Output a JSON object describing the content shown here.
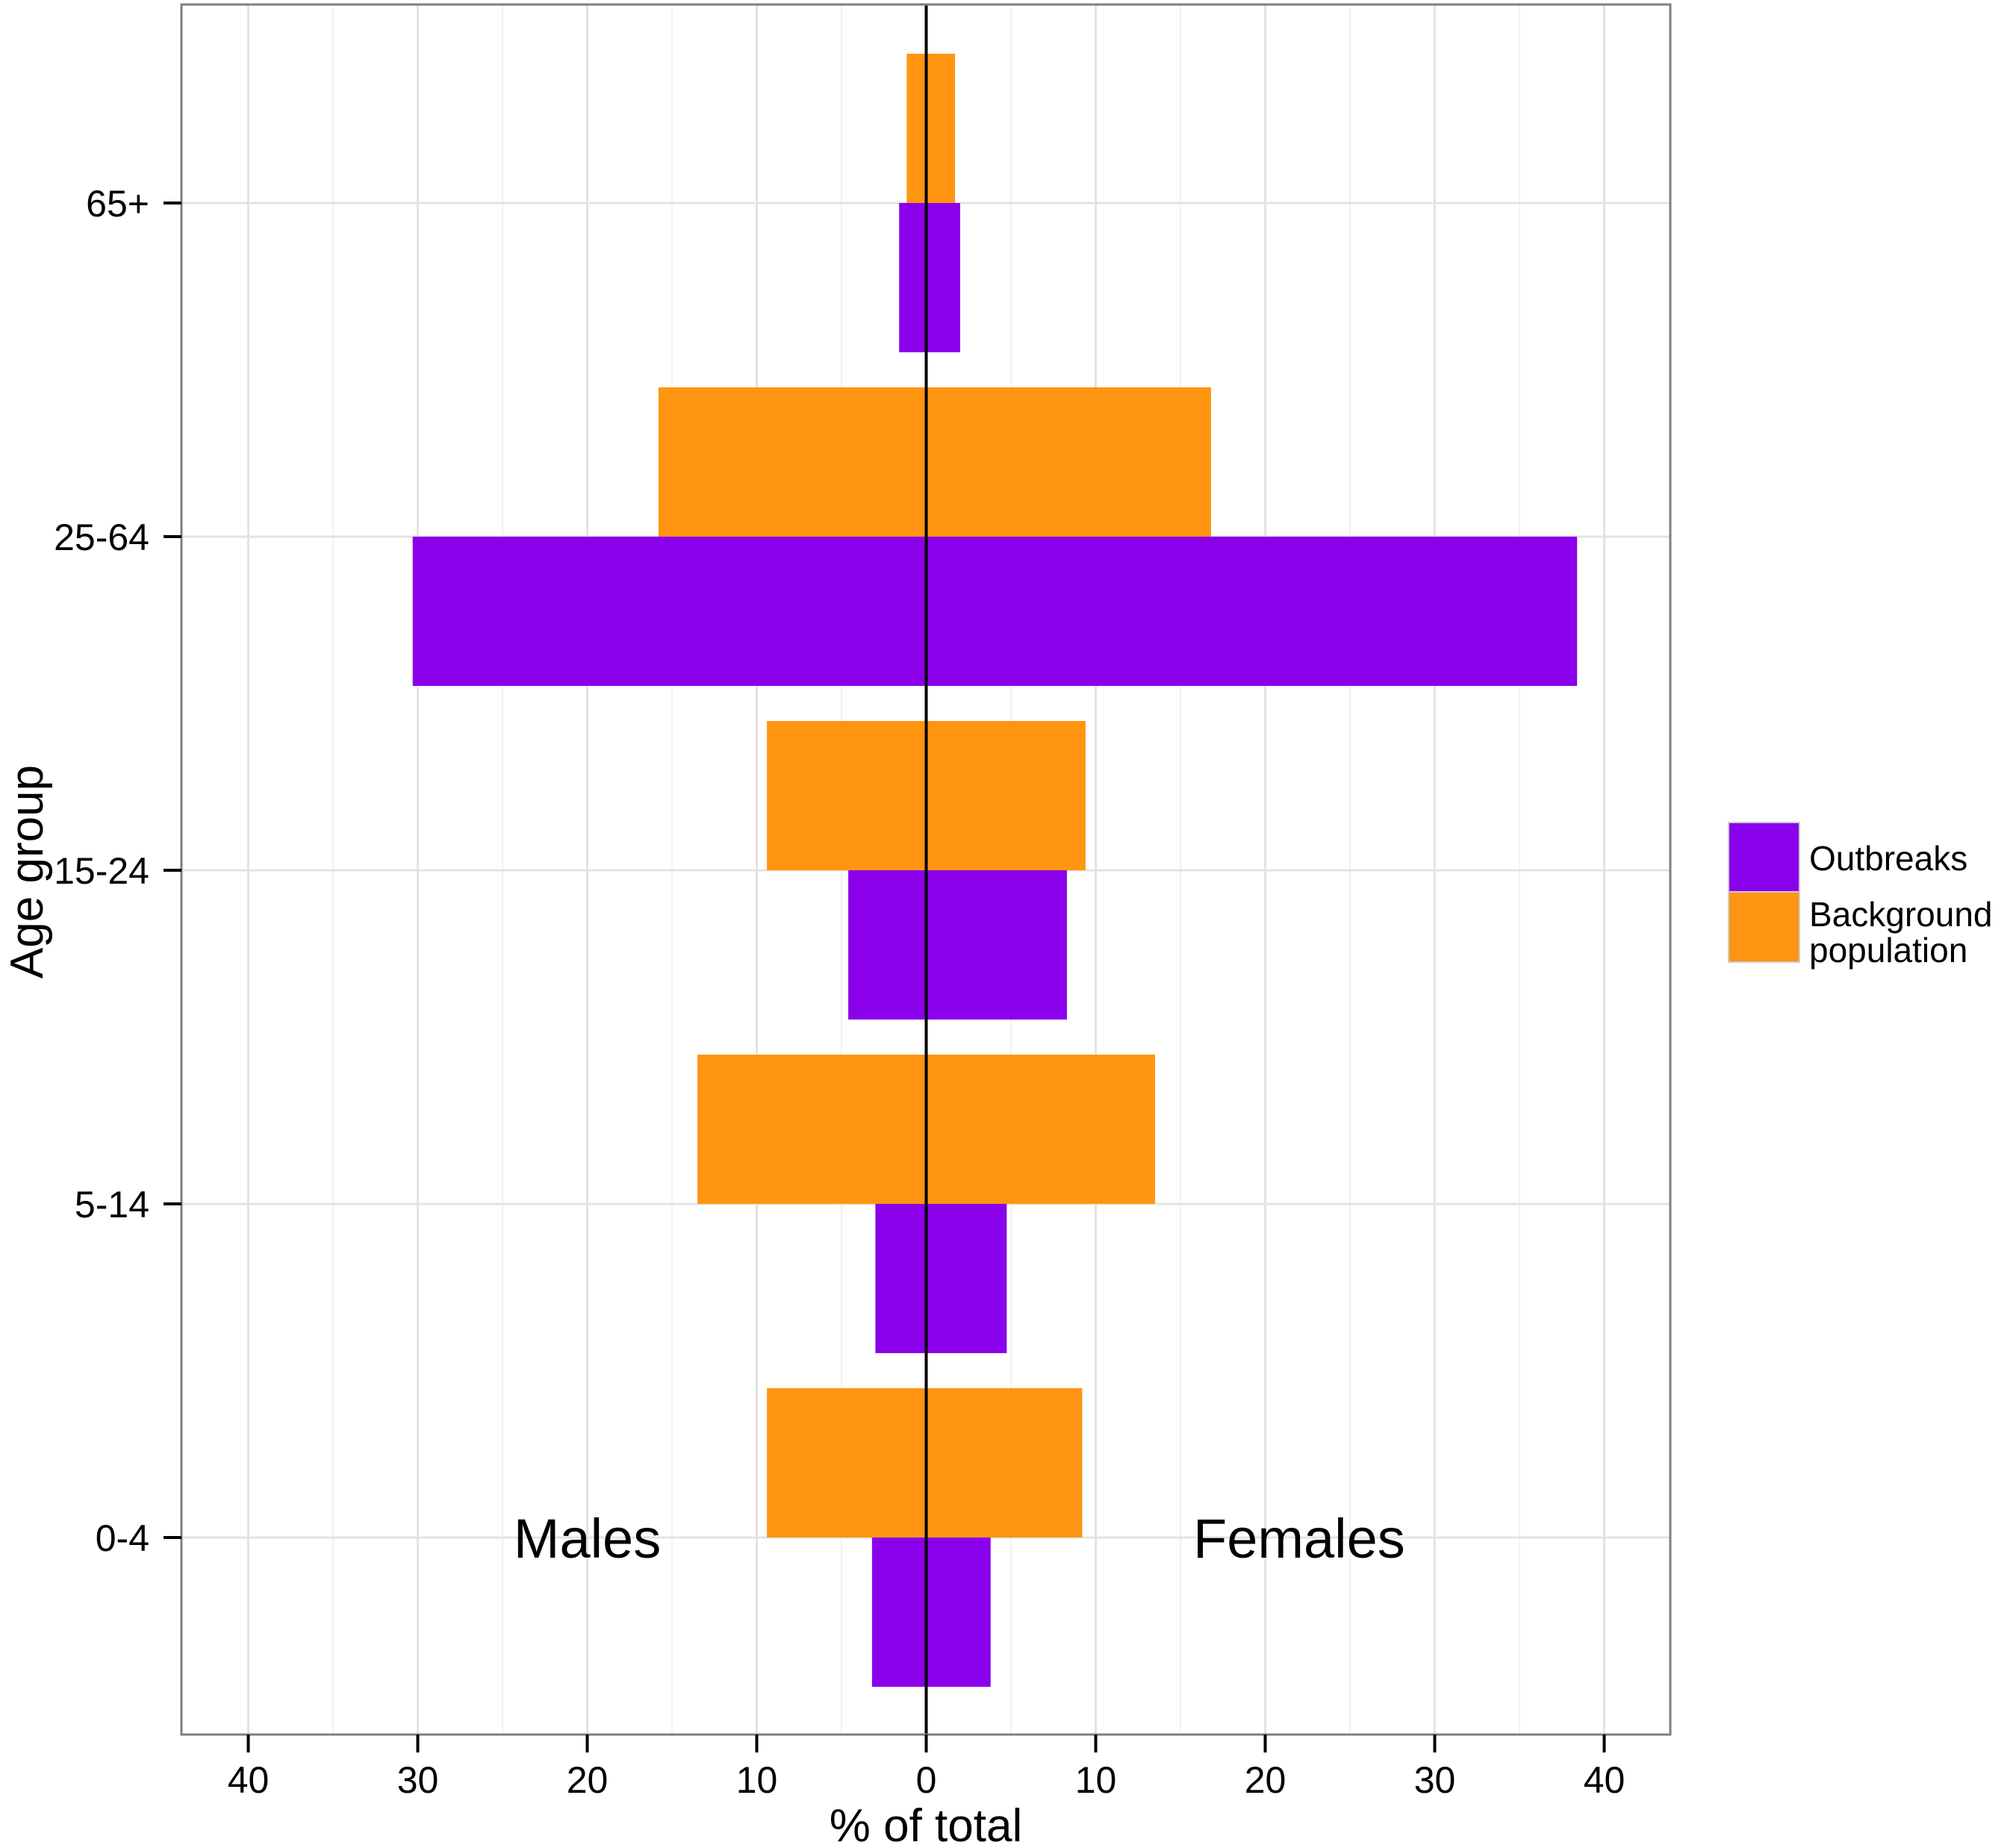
{
  "chart_data": {
    "type": "bar",
    "orientation": "horizontal",
    "subtype": "population-pyramid",
    "title": "",
    "xlabel": "% of total",
    "ylabel": "Age group",
    "xlim": [
      -43.5,
      44.3
    ],
    "x_ticks": [
      -40,
      -30,
      -20,
      -10,
      0,
      10,
      20,
      30,
      40
    ],
    "x_tick_labels": [
      "40",
      "30",
      "20",
      "10",
      "0",
      "10",
      "20",
      "30",
      "40"
    ],
    "categories": [
      "65+",
      "25-64",
      "15-24",
      "5-14",
      "0-4"
    ],
    "grid": true,
    "legend_position": "right",
    "annotations": [
      {
        "text": "Males",
        "x": -20,
        "category": "0-4"
      },
      {
        "text": "Females",
        "x": 22,
        "category": "0-4"
      }
    ],
    "series": [
      {
        "name": "Outbreaks",
        "color": "#8B00EB",
        "position": "below-category-line",
        "males": [
          1.6,
          30.3,
          4.6,
          3.0,
          3.2
        ],
        "females": [
          2.0,
          38.4,
          8.3,
          4.75,
          3.8
        ]
      },
      {
        "name": "Background population",
        "legend_lines": [
          "Background",
          "population"
        ],
        "color": "#FF9510",
        "position": "above-category-line",
        "males": [
          1.15,
          15.8,
          9.4,
          13.5,
          9.4
        ],
        "females": [
          1.7,
          16.8,
          9.4,
          13.5,
          9.2
        ]
      }
    ]
  }
}
